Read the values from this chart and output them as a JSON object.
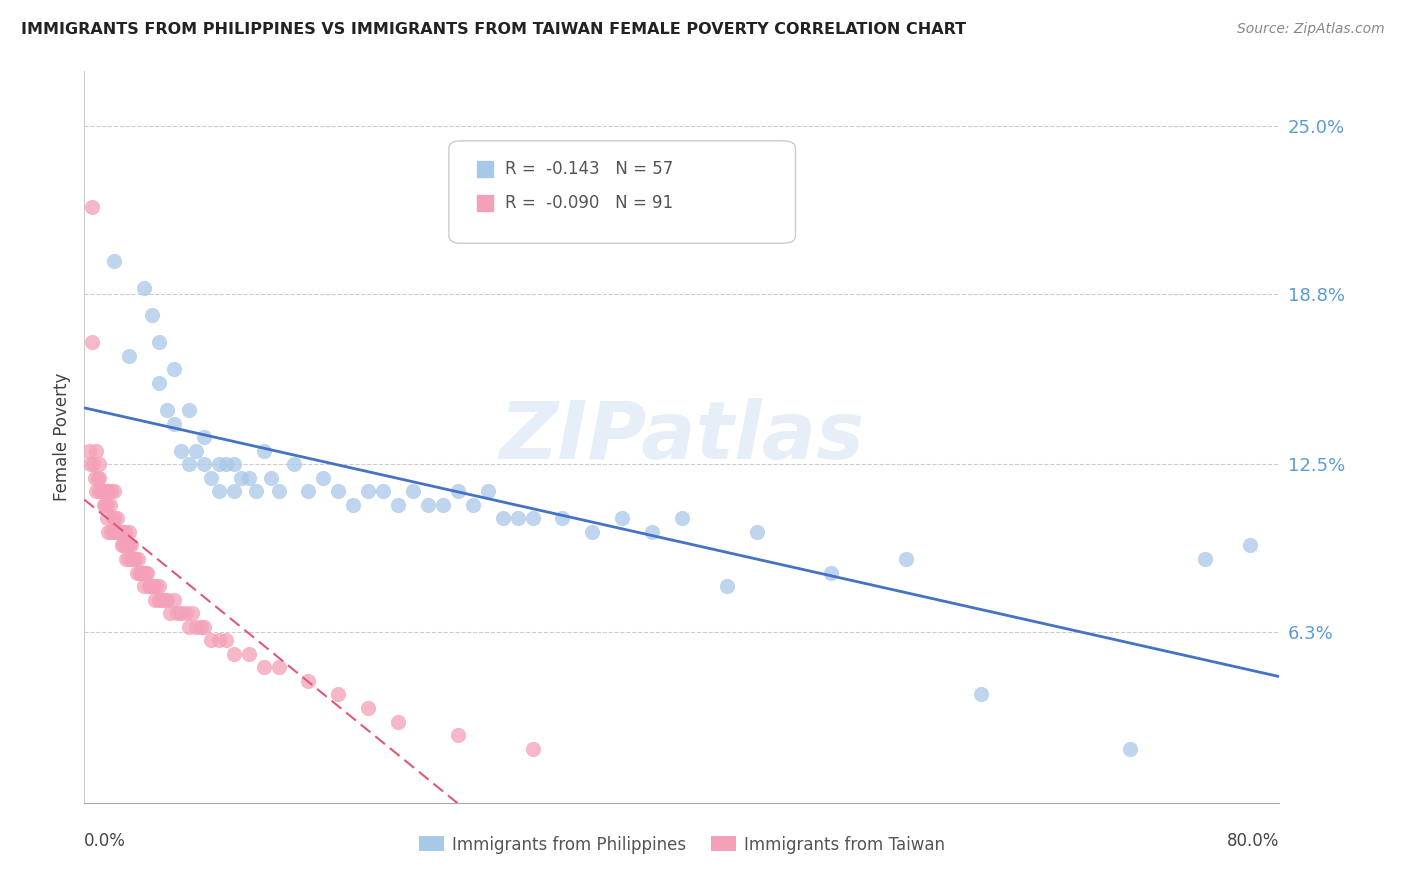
{
  "title": "IMMIGRANTS FROM PHILIPPINES VS IMMIGRANTS FROM TAIWAN FEMALE POVERTY CORRELATION CHART",
  "source": "Source: ZipAtlas.com",
  "ylabel": "Female Poverty",
  "ytick_labels": [
    "25.0%",
    "18.8%",
    "12.5%",
    "6.3%"
  ],
  "ytick_values": [
    0.25,
    0.188,
    0.125,
    0.063
  ],
  "xmin": 0.0,
  "xmax": 0.8,
  "ymin": 0.0,
  "ymax": 0.27,
  "legend_r_phil": "-0.143",
  "legend_n_phil": "57",
  "legend_r_taiwan": "-0.090",
  "legend_n_taiwan": "91",
  "color_phil": "#A8C8E8",
  "color_taiwan": "#F4A0B8",
  "trendline_phil_color": "#4472C4",
  "trendline_taiwan_color": "#E05878",
  "watermark": "ZIPatlas",
  "phil_x": [
    0.02,
    0.03,
    0.04,
    0.045,
    0.05,
    0.05,
    0.055,
    0.06,
    0.06,
    0.065,
    0.07,
    0.07,
    0.075,
    0.08,
    0.08,
    0.085,
    0.09,
    0.09,
    0.095,
    0.1,
    0.1,
    0.105,
    0.11,
    0.115,
    0.12,
    0.125,
    0.13,
    0.14,
    0.15,
    0.16,
    0.17,
    0.18,
    0.19,
    0.2,
    0.21,
    0.22,
    0.23,
    0.24,
    0.25,
    0.26,
    0.27,
    0.28,
    0.29,
    0.3,
    0.32,
    0.34,
    0.36,
    0.38,
    0.4,
    0.43,
    0.45,
    0.5,
    0.55,
    0.6,
    0.7,
    0.75,
    0.78
  ],
  "phil_y": [
    0.2,
    0.165,
    0.19,
    0.18,
    0.17,
    0.155,
    0.145,
    0.14,
    0.16,
    0.13,
    0.145,
    0.125,
    0.13,
    0.125,
    0.135,
    0.12,
    0.125,
    0.115,
    0.125,
    0.125,
    0.115,
    0.12,
    0.12,
    0.115,
    0.13,
    0.12,
    0.115,
    0.125,
    0.115,
    0.12,
    0.115,
    0.11,
    0.115,
    0.115,
    0.11,
    0.115,
    0.11,
    0.11,
    0.115,
    0.11,
    0.115,
    0.105,
    0.105,
    0.105,
    0.105,
    0.1,
    0.105,
    0.1,
    0.105,
    0.08,
    0.1,
    0.085,
    0.09,
    0.04,
    0.02,
    0.09,
    0.095
  ],
  "taiwan_x": [
    0.003,
    0.004,
    0.005,
    0.005,
    0.006,
    0.007,
    0.008,
    0.008,
    0.009,
    0.01,
    0.01,
    0.01,
    0.011,
    0.012,
    0.013,
    0.013,
    0.014,
    0.015,
    0.015,
    0.015,
    0.016,
    0.016,
    0.017,
    0.018,
    0.018,
    0.019,
    0.02,
    0.02,
    0.02,
    0.021,
    0.022,
    0.022,
    0.023,
    0.024,
    0.025,
    0.025,
    0.026,
    0.027,
    0.028,
    0.028,
    0.029,
    0.03,
    0.03,
    0.03,
    0.031,
    0.032,
    0.033,
    0.034,
    0.035,
    0.036,
    0.037,
    0.038,
    0.039,
    0.04,
    0.04,
    0.041,
    0.042,
    0.043,
    0.044,
    0.045,
    0.046,
    0.047,
    0.048,
    0.05,
    0.05,
    0.052,
    0.054,
    0.055,
    0.057,
    0.06,
    0.062,
    0.065,
    0.068,
    0.07,
    0.072,
    0.075,
    0.078,
    0.08,
    0.085,
    0.09,
    0.095,
    0.1,
    0.11,
    0.12,
    0.13,
    0.15,
    0.17,
    0.19,
    0.21,
    0.25,
    0.3
  ],
  "taiwan_y": [
    0.13,
    0.125,
    0.22,
    0.17,
    0.125,
    0.12,
    0.13,
    0.115,
    0.12,
    0.125,
    0.115,
    0.12,
    0.115,
    0.115,
    0.11,
    0.115,
    0.11,
    0.115,
    0.11,
    0.105,
    0.115,
    0.1,
    0.11,
    0.1,
    0.115,
    0.105,
    0.105,
    0.1,
    0.115,
    0.1,
    0.105,
    0.1,
    0.1,
    0.1,
    0.1,
    0.095,
    0.095,
    0.1,
    0.095,
    0.09,
    0.095,
    0.095,
    0.09,
    0.1,
    0.095,
    0.09,
    0.09,
    0.09,
    0.085,
    0.09,
    0.085,
    0.085,
    0.085,
    0.085,
    0.08,
    0.085,
    0.085,
    0.08,
    0.08,
    0.08,
    0.08,
    0.075,
    0.08,
    0.075,
    0.08,
    0.075,
    0.075,
    0.075,
    0.07,
    0.075,
    0.07,
    0.07,
    0.07,
    0.065,
    0.07,
    0.065,
    0.065,
    0.065,
    0.06,
    0.06,
    0.06,
    0.055,
    0.055,
    0.05,
    0.05,
    0.045,
    0.04,
    0.035,
    0.03,
    0.025,
    0.02
  ]
}
